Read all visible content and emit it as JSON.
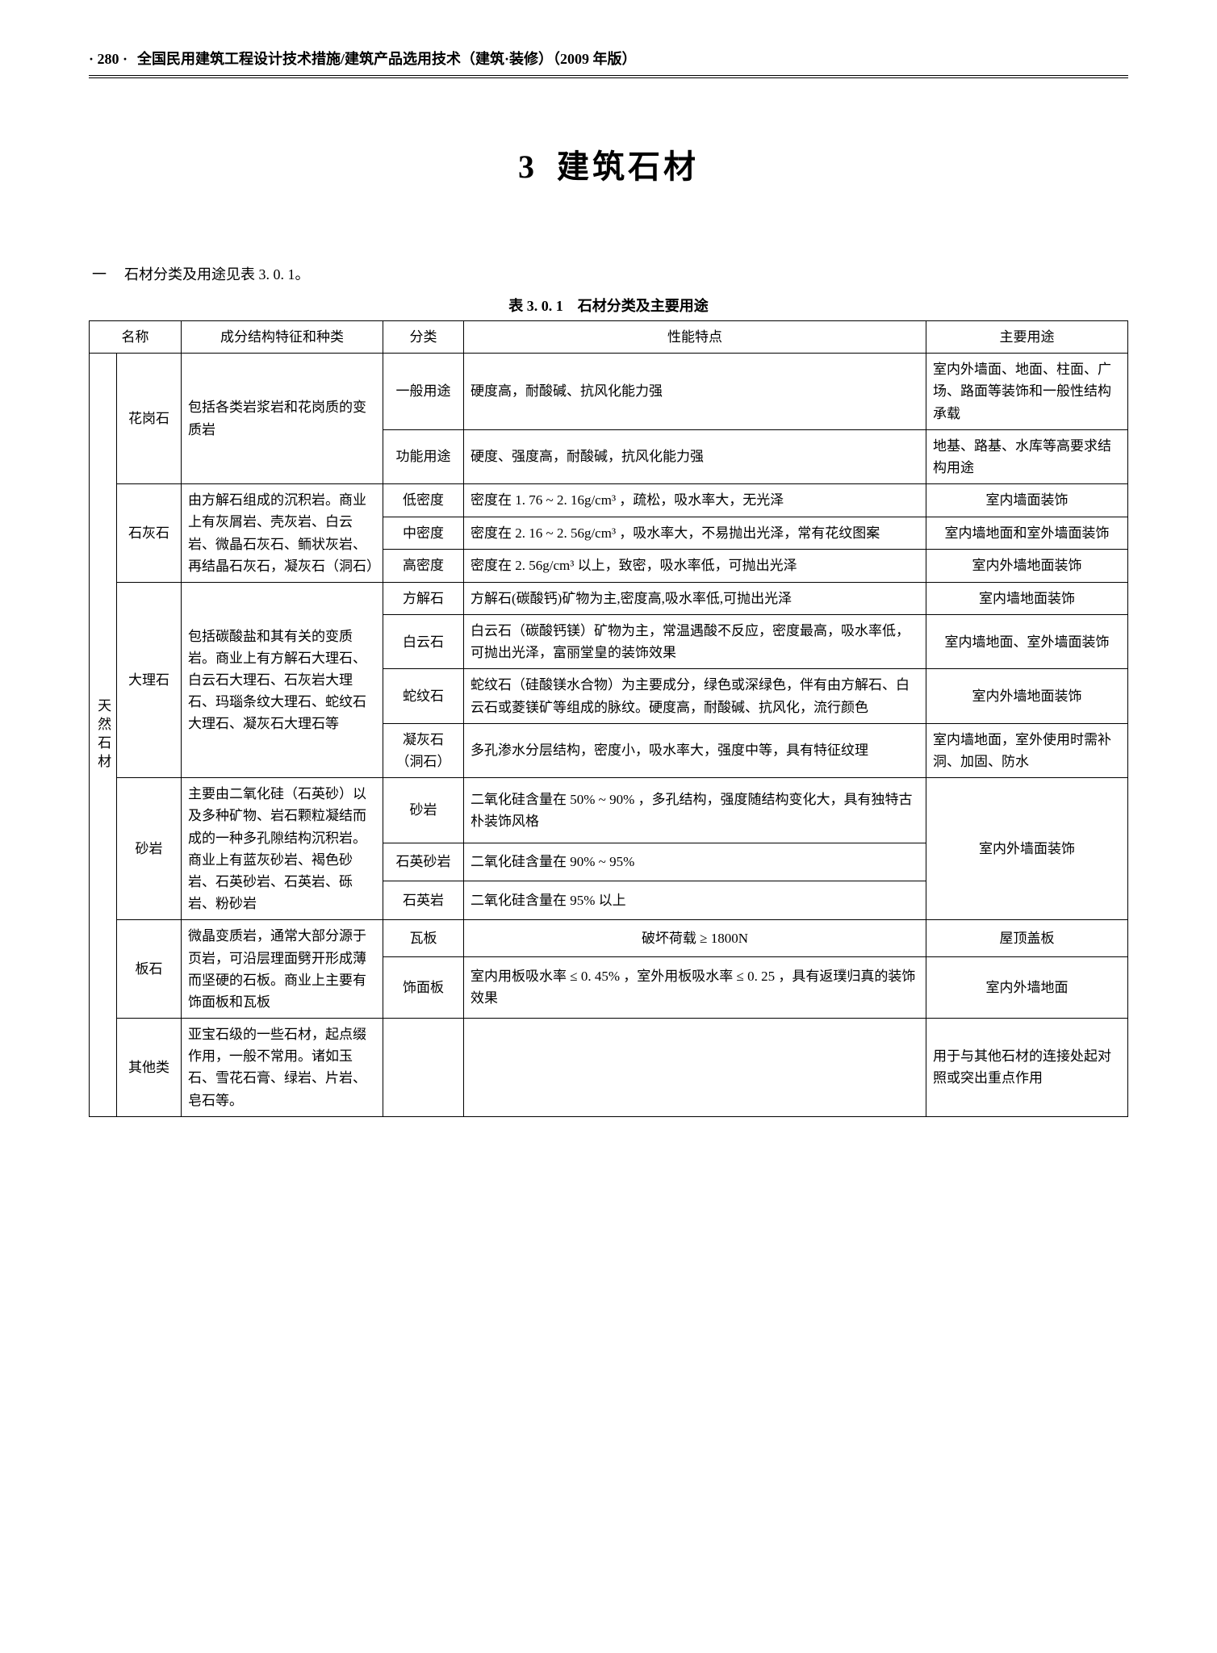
{
  "header": {
    "page_num": "· 280 ·",
    "book_title": "全国民用建筑工程设计技术措施/建筑产品选用技术（建筑·装修）（2009 年版）"
  },
  "chapter": {
    "num": "3",
    "title": "建筑石材"
  },
  "intro": {
    "one": "一",
    "text": "石材分类及用途见表 3. 0. 1。"
  },
  "table": {
    "caption": "表 3. 0. 1　石材分类及主要用途",
    "columns": [
      "名称",
      "成分结构特征和种类",
      "分类",
      "性能特点",
      "主要用途"
    ],
    "sidecat": "天然石材",
    "rows": [
      {
        "name": "花岗石",
        "comp": "包括各类岩浆岩和花岗质的变质岩",
        "sub": [
          {
            "cls": "一般用途",
            "feat": "硬度高，耐酸碱、抗风化能力强",
            "use": "室内外墙面、地面、柱面、广场、路面等装饰和一般性结构承载"
          },
          {
            "cls": "功能用途",
            "feat": "硬度、强度高，耐酸碱，抗风化能力强",
            "use": "地基、路基、水库等高要求结构用途"
          }
        ]
      },
      {
        "name": "石灰石",
        "comp": "由方解石组成的沉积岩。商业上有灰屑岩、壳灰岩、白云岩、微晶石灰石、鲕状灰岩、再结晶石灰石，凝灰石（洞石）",
        "sub": [
          {
            "cls": "低密度",
            "feat": "密度在 1. 76 ~ 2. 16g/cm³ ，疏松，吸水率大，无光泽",
            "use": "室内墙面装饰",
            "use_center": true
          },
          {
            "cls": "中密度",
            "feat": "密度在 2. 16 ~ 2. 56g/cm³ ，吸水率大，不易抛出光泽，常有花纹图案",
            "use": "室内墙地面和室外墙面装饰",
            "use_center": true
          },
          {
            "cls": "高密度",
            "feat": "密度在 2. 56g/cm³ 以上，致密，吸水率低，可抛出光泽",
            "use": "室内外墙地面装饰",
            "use_center": true
          }
        ]
      },
      {
        "name": "大理石",
        "comp": "包括碳酸盐和其有关的变质岩。商业上有方解石大理石、白云石大理石、石灰岩大理石、玛瑙条纹大理石、蛇纹石大理石、凝灰石大理石等",
        "sub": [
          {
            "cls": "方解石",
            "feat": "方解石(碳酸钙)矿物为主,密度高,吸水率低,可抛出光泽",
            "use": "室内墙地面装饰",
            "use_center": true
          },
          {
            "cls": "白云石",
            "feat": "白云石（碳酸钙镁）矿物为主，常温遇酸不反应，密度最高，吸水率低，可抛出光泽，富丽堂皇的装饰效果",
            "use": "室内墙地面、室外墙面装饰",
            "use_center": true
          },
          {
            "cls": "蛇纹石",
            "feat": "蛇纹石（硅酸镁水合物）为主要成分，绿色或深绿色，伴有由方解石、白云石或菱镁矿等组成的脉纹。硬度高，耐酸碱、抗风化，流行颜色",
            "use": "室内外墙地面装饰",
            "use_center": true
          },
          {
            "cls": "凝灰石（洞石）",
            "feat": "多孔渗水分层结构，密度小，吸水率大，强度中等，具有特征纹理",
            "use": "室内墙地面，室外使用时需补洞、加固、防水"
          }
        ]
      },
      {
        "name": "砂岩",
        "comp": "主要由二氧化硅（石英砂）以及多种矿物、岩石颗粒凝结而成的一种多孔隙结构沉积岩。商业上有蓝灰砂岩、褐色砂岩、石英砂岩、石英岩、砾岩、粉砂岩",
        "sub": [
          {
            "cls": "砂岩",
            "feat": "二氧化硅含量在 50% ~ 90% ，多孔结构，强度随结构变化大，具有独特古朴装饰风格",
            "use": "室内外墙面装饰",
            "use_rowspan": 3,
            "use_center": true
          },
          {
            "cls": "石英砂岩",
            "feat": "二氧化硅含量在 90% ~ 95%"
          },
          {
            "cls": "石英岩",
            "feat": "二氧化硅含量在 95% 以上"
          }
        ]
      },
      {
        "name": "板石",
        "comp": "微晶变质岩，通常大部分源于页岩，可沿层理面劈开形成薄而坚硬的石板。商业上主要有饰面板和瓦板",
        "sub": [
          {
            "cls": "瓦板",
            "feat": "破坏荷载 ≥ 1800N",
            "feat_center": true,
            "use": "屋顶盖板",
            "use_center": true
          },
          {
            "cls": "饰面板",
            "feat": "室内用板吸水率 ≤ 0. 45% ，室外用板吸水率 ≤ 0. 25 ，具有返璞归真的装饰效果",
            "use": "室内外墙地面",
            "use_center": true
          }
        ]
      },
      {
        "name": "其他类",
        "comp": "亚宝石级的一些石材，起点缀作用，一般不常用。诸如玉石、雪花石膏、绿岩、片岩、皂石等。",
        "cls": "",
        "feat": "",
        "use": "用于与其他石材的连接处起对照或突出重点作用"
      }
    ]
  }
}
